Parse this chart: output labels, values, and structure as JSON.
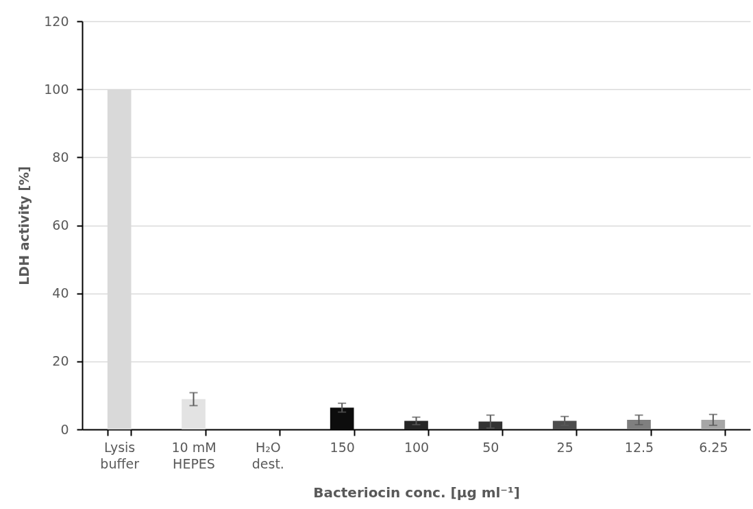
{
  "chart_data": {
    "type": "bar",
    "xlabel": "Bacteriocin conc. [µg ml⁻¹]",
    "ylabel": "LDH activity [%]",
    "categories": [
      "Lysis\nbuffer",
      "10 mM\nHEPES",
      "H₂O\ndest.",
      "150",
      "100",
      "50",
      "25",
      "12.5",
      "6.25"
    ],
    "values": [
      100,
      8.9,
      null,
      6.4,
      2.5,
      2.3,
      2.5,
      2.8,
      2.8
    ],
    "errors": [
      null,
      1.9,
      null,
      1.3,
      1.1,
      1.9,
      1.3,
      1.4,
      1.6
    ],
    "colors": [
      "#d9d9d9",
      "#e3e3e3",
      "#ffffff",
      "#0d0d0d",
      "#262626",
      "#333333",
      "#4d4d4d",
      "#7f7f7f",
      "#a6a6a6"
    ],
    "ylim": [
      0,
      120
    ],
    "yticks": [
      0,
      20,
      40,
      60,
      80,
      100,
      120
    ],
    "grid": "y"
  }
}
